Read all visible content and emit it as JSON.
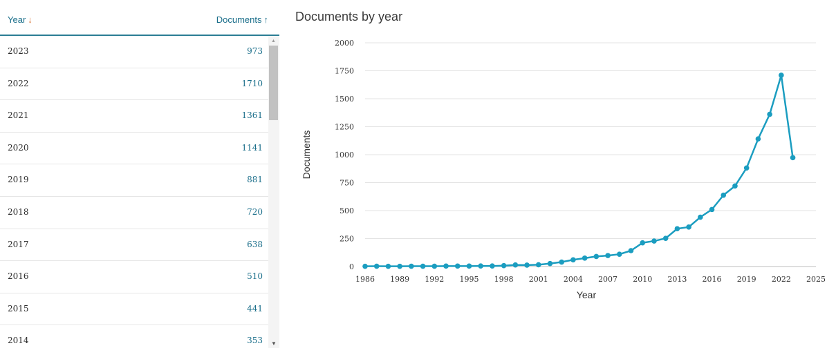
{
  "table": {
    "year_header": "Year",
    "docs_header": "Documents",
    "rows": [
      {
        "year": "2023",
        "value": "973"
      },
      {
        "year": "2022",
        "value": "1710"
      },
      {
        "year": "2021",
        "value": "1361"
      },
      {
        "year": "2020",
        "value": "1141"
      },
      {
        "year": "2019",
        "value": "881"
      },
      {
        "year": "2018",
        "value": "720"
      },
      {
        "year": "2017",
        "value": "638"
      },
      {
        "year": "2016",
        "value": "510"
      },
      {
        "year": "2015",
        "value": "441"
      },
      {
        "year": "2014",
        "value": "353"
      }
    ]
  },
  "icons": {
    "year_sort": "arrow-down-icon",
    "docs_sort": "arrow-up-icon",
    "scroll_up": "scroll-up-icon",
    "scroll_down": "scroll-down-icon"
  },
  "colors": {
    "line": "#1b9dc0",
    "header_text": "#1a6e8a",
    "sort_accent": "#d9773a",
    "header_rule": "#2a7d94"
  },
  "chart_data": {
    "type": "line",
    "title": "Documents by year",
    "xlabel": "Year",
    "ylabel": "Documents",
    "xlim": [
      1986,
      2025
    ],
    "ylim": [
      0,
      2000
    ],
    "x_ticks": [
      1986,
      1989,
      1992,
      1995,
      1998,
      2001,
      2004,
      2007,
      2010,
      2013,
      2016,
      2019,
      2022,
      2025
    ],
    "y_ticks": [
      0,
      250,
      500,
      750,
      1000,
      1250,
      1500,
      1750,
      2000
    ],
    "grid": true,
    "series": [
      {
        "x": [
          1986,
          1987,
          1988,
          1989,
          1990,
          1991,
          1992,
          1993,
          1994,
          1995,
          1996,
          1997,
          1998,
          1999,
          2000,
          2001,
          2002,
          2003,
          2004,
          2005,
          2006,
          2007,
          2008,
          2009,
          2010,
          2011,
          2012,
          2013,
          2014,
          2015,
          2016,
          2017,
          2018,
          2019,
          2020,
          2021,
          2022,
          2023
        ],
        "values": [
          2,
          3,
          2,
          2,
          3,
          3,
          3,
          4,
          4,
          4,
          5,
          5,
          8,
          14,
          13,
          16,
          27,
          40,
          60,
          75,
          90,
          98,
          110,
          142,
          212,
          228,
          252,
          338,
          353,
          441,
          510,
          638,
          720,
          881,
          1141,
          1361,
          1710,
          973
        ]
      }
    ]
  }
}
